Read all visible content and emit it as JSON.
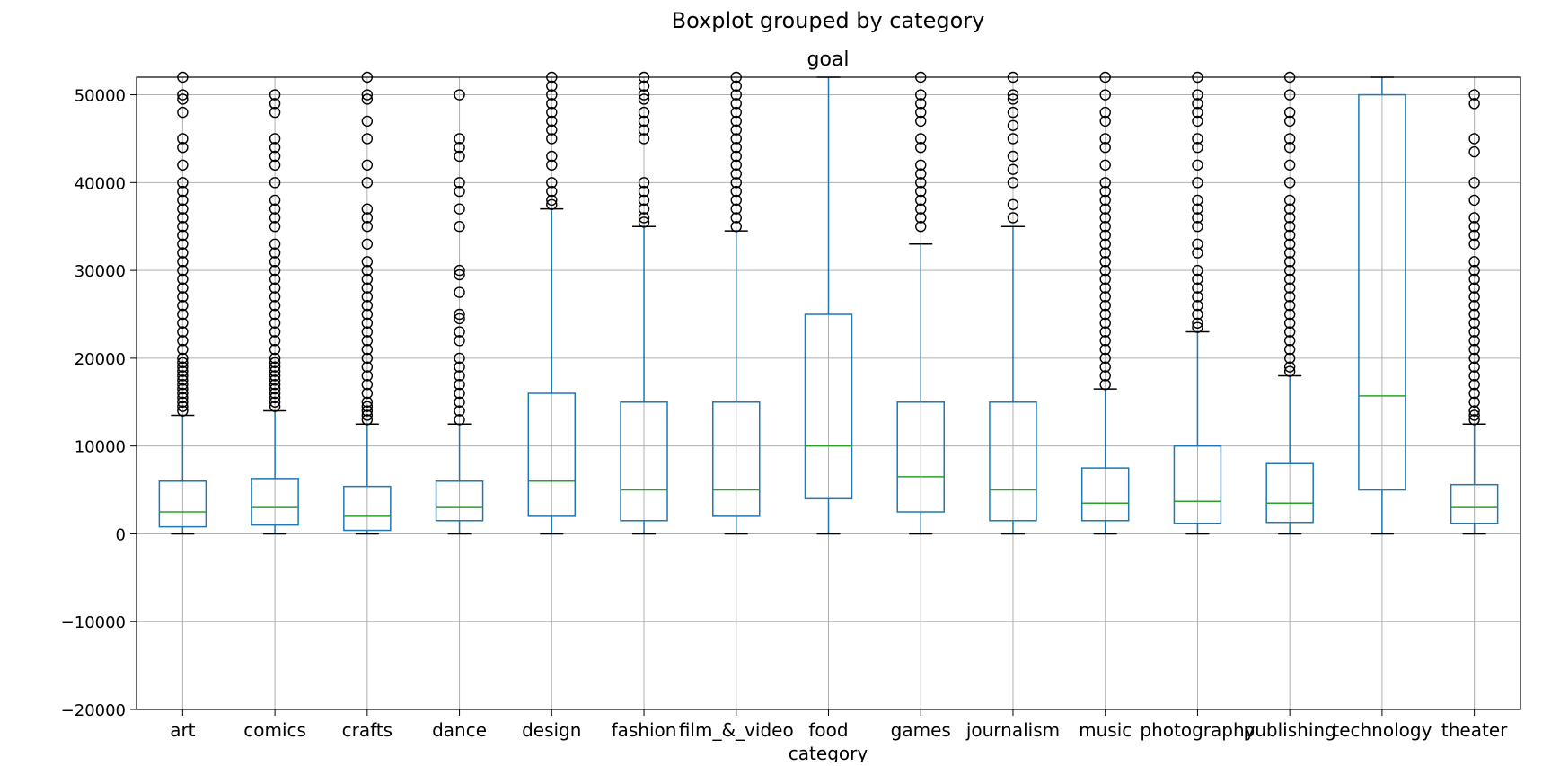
{
  "chart_data": {
    "type": "box",
    "suptitle": "Boxplot grouped by category",
    "title": "goal",
    "xlabel": "category",
    "ylabel": "",
    "ylim": [
      -20000,
      52000
    ],
    "yticks": [
      -20000,
      -10000,
      0,
      10000,
      20000,
      30000,
      40000,
      50000
    ],
    "ytick_labels": [
      "−20000",
      "−10000",
      "0",
      "10000",
      "20000",
      "30000",
      "40000",
      "50000"
    ],
    "grid": true,
    "categories": [
      "art",
      "comics",
      "crafts",
      "dance",
      "design",
      "fashion",
      "film_&_video",
      "food",
      "games",
      "journalism",
      "music",
      "photography",
      "publishing",
      "technology",
      "theater"
    ],
    "boxes": [
      {
        "category": "art",
        "whisker_low": 0,
        "q1": 800,
        "median": 2500,
        "q3": 6000,
        "whisker_high": 13500,
        "outliers": [
          14000,
          14500,
          15000,
          15500,
          16000,
          16500,
          17000,
          17500,
          18000,
          18500,
          19000,
          19500,
          20000,
          21000,
          22000,
          23000,
          24000,
          25000,
          26000,
          27000,
          28000,
          29000,
          30000,
          31000,
          32000,
          33000,
          34000,
          35000,
          36000,
          37000,
          38000,
          39000,
          40000,
          42000,
          44000,
          45000,
          48000,
          49500,
          50000,
          52000
        ]
      },
      {
        "category": "comics",
        "whisker_low": 0,
        "q1": 1000,
        "median": 3000,
        "q3": 6300,
        "whisker_high": 14000,
        "outliers": [
          14500,
          15000,
          15500,
          16000,
          16500,
          17000,
          17500,
          18000,
          18500,
          19000,
          19500,
          20000,
          21000,
          22000,
          23000,
          24000,
          25000,
          26000,
          27000,
          28000,
          29000,
          30000,
          31000,
          32000,
          33000,
          35000,
          36000,
          37000,
          38000,
          40000,
          42000,
          43000,
          44000,
          45000,
          48000,
          49000,
          50000
        ]
      },
      {
        "category": "crafts",
        "whisker_low": 0,
        "q1": 400,
        "median": 2000,
        "q3": 5400,
        "whisker_high": 12500,
        "outliers": [
          13000,
          13500,
          14000,
          14500,
          15000,
          16000,
          17000,
          18000,
          19000,
          20000,
          21000,
          22000,
          23000,
          24000,
          25000,
          26000,
          27000,
          28000,
          29000,
          30000,
          31000,
          33000,
          35000,
          36000,
          37000,
          40000,
          42000,
          45000,
          47000,
          49500,
          50000,
          52000
        ]
      },
      {
        "category": "dance",
        "whisker_low": 0,
        "q1": 1500,
        "median": 3000,
        "q3": 6000,
        "whisker_high": 12500,
        "outliers": [
          13000,
          14000,
          15000,
          16000,
          17000,
          18000,
          19000,
          20000,
          22000,
          23000,
          24500,
          25000,
          27500,
          29500,
          30000,
          35000,
          37000,
          39000,
          40000,
          43000,
          44000,
          45000,
          50000
        ]
      },
      {
        "category": "design",
        "whisker_low": 0,
        "q1": 2000,
        "median": 6000,
        "q3": 16000,
        "whisker_high": 37000,
        "outliers": [
          37500,
          38000,
          39000,
          40000,
          42000,
          43000,
          45000,
          46000,
          47000,
          48000,
          49000,
          50000,
          51000,
          52000
        ]
      },
      {
        "category": "fashion",
        "whisker_low": 0,
        "q1": 1500,
        "median": 5000,
        "q3": 15000,
        "whisker_high": 35000,
        "outliers": [
          35500,
          36000,
          37000,
          38000,
          39000,
          40000,
          45000,
          46000,
          47000,
          48000,
          49500,
          50000,
          51000,
          52000
        ]
      },
      {
        "category": "film_&_video",
        "whisker_low": 0,
        "q1": 2000,
        "median": 5000,
        "q3": 15000,
        "whisker_high": 34500,
        "outliers": [
          35000,
          36000,
          37000,
          38000,
          39000,
          40000,
          41000,
          42000,
          43000,
          44000,
          45000,
          46000,
          47000,
          48000,
          49000,
          50000,
          51000,
          52000
        ]
      },
      {
        "category": "food",
        "whisker_low": 0,
        "q1": 4000,
        "median": 10000,
        "q3": 25000,
        "whisker_high": 52000,
        "outliers": []
      },
      {
        "category": "games",
        "whisker_low": 0,
        "q1": 2500,
        "median": 6500,
        "q3": 15000,
        "whisker_high": 33000,
        "outliers": [
          35000,
          36000,
          37000,
          38000,
          39000,
          40000,
          41000,
          42000,
          44000,
          45000,
          47000,
          48000,
          49000,
          50000,
          52000
        ]
      },
      {
        "category": "journalism",
        "whisker_low": 0,
        "q1": 1500,
        "median": 5000,
        "q3": 15000,
        "whisker_high": 35000,
        "outliers": [
          36000,
          37500,
          40000,
          41500,
          43000,
          45000,
          46500,
          48000,
          49500,
          50000,
          52000
        ]
      },
      {
        "category": "music",
        "whisker_low": 0,
        "q1": 1500,
        "median": 3500,
        "q3": 7500,
        "whisker_high": 16500,
        "outliers": [
          17000,
          18000,
          19000,
          20000,
          21000,
          22000,
          23000,
          24000,
          25000,
          26000,
          27000,
          28000,
          29000,
          30000,
          31000,
          32000,
          33000,
          34000,
          35000,
          36000,
          37000,
          38000,
          39000,
          40000,
          42000,
          44000,
          45000,
          47000,
          48000,
          50000,
          52000
        ]
      },
      {
        "category": "photography",
        "whisker_low": 0,
        "q1": 1200,
        "median": 3700,
        "q3": 10000,
        "whisker_high": 23000,
        "outliers": [
          23500,
          24000,
          25000,
          26000,
          27000,
          28000,
          29000,
          30000,
          32000,
          33000,
          35000,
          36000,
          37000,
          38000,
          40000,
          42000,
          44000,
          45000,
          47000,
          48000,
          49000,
          50000,
          52000
        ]
      },
      {
        "category": "publishing",
        "whisker_low": 0,
        "q1": 1300,
        "median": 3500,
        "q3": 8000,
        "whisker_high": 18000,
        "outliers": [
          18500,
          19000,
          20000,
          21000,
          22000,
          23000,
          24000,
          25000,
          26000,
          27000,
          28000,
          29000,
          30000,
          31000,
          32000,
          33000,
          34000,
          35000,
          36000,
          37000,
          38000,
          40000,
          42000,
          44000,
          45000,
          47000,
          48000,
          50000,
          52000
        ]
      },
      {
        "category": "technology",
        "whisker_low": 0,
        "q1": 5000,
        "median": 15700,
        "q3": 50000,
        "whisker_high": 52000,
        "outliers": []
      },
      {
        "category": "theater",
        "whisker_low": 0,
        "q1": 1200,
        "median": 3000,
        "q3": 5600,
        "whisker_high": 12500,
        "outliers": [
          13000,
          13500,
          14000,
          15000,
          16000,
          17000,
          18000,
          19000,
          20000,
          21000,
          22000,
          23000,
          24000,
          25000,
          26000,
          27000,
          28000,
          29000,
          30000,
          31000,
          33000,
          34000,
          35000,
          36000,
          38000,
          40000,
          43500,
          45000,
          49000,
          50000
        ]
      }
    ],
    "colors": {
      "box": "#1f77b4",
      "median": "#2ca02c",
      "grid": "#b0b0b0",
      "outlier": "#000000"
    }
  }
}
